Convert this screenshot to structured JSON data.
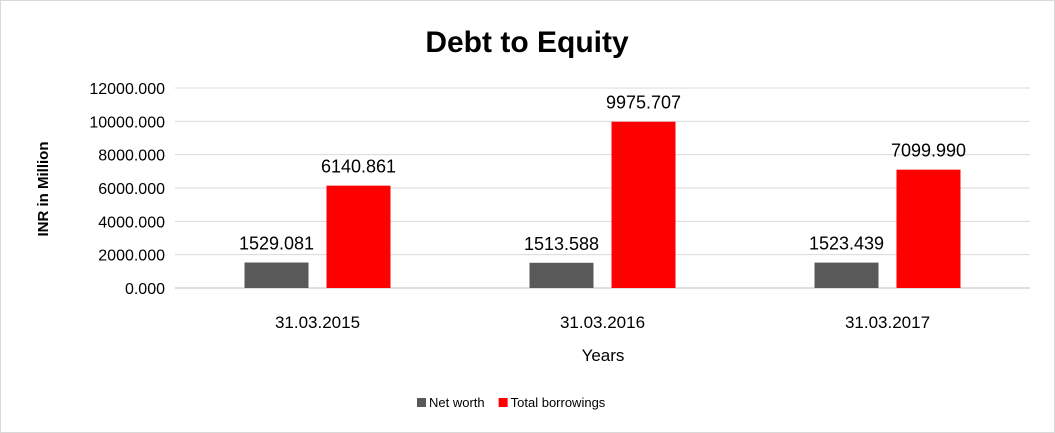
{
  "chart_data": {
    "type": "bar",
    "title": "Debt to Equity",
    "xlabel": "Years",
    "ylabel": "INR in Million",
    "categories": [
      "31.03.2015",
      "31.03.2016",
      "31.03.2017"
    ],
    "series": [
      {
        "name": "Net worth",
        "color": "#595959",
        "values": [
          1529.081,
          1513.588,
          1523.439
        ],
        "labels": [
          "1529.081",
          "1513.588",
          "1523.439"
        ]
      },
      {
        "name": "Total borrowings",
        "color": "#ff0000",
        "values": [
          6140.861,
          9975.707,
          7099.99
        ],
        "labels": [
          "6140.861",
          "9975.707",
          "7099.990"
        ]
      }
    ],
    "ylim": [
      0,
      12000
    ],
    "yticks": [
      0,
      2000,
      4000,
      6000,
      8000,
      10000,
      12000
    ],
    "ytick_labels": [
      "0.000",
      "2000.000",
      "4000.000",
      "6000.000",
      "8000.000",
      "10000.000",
      "12000.000"
    ],
    "grid": true,
    "legend_position": "bottom"
  }
}
